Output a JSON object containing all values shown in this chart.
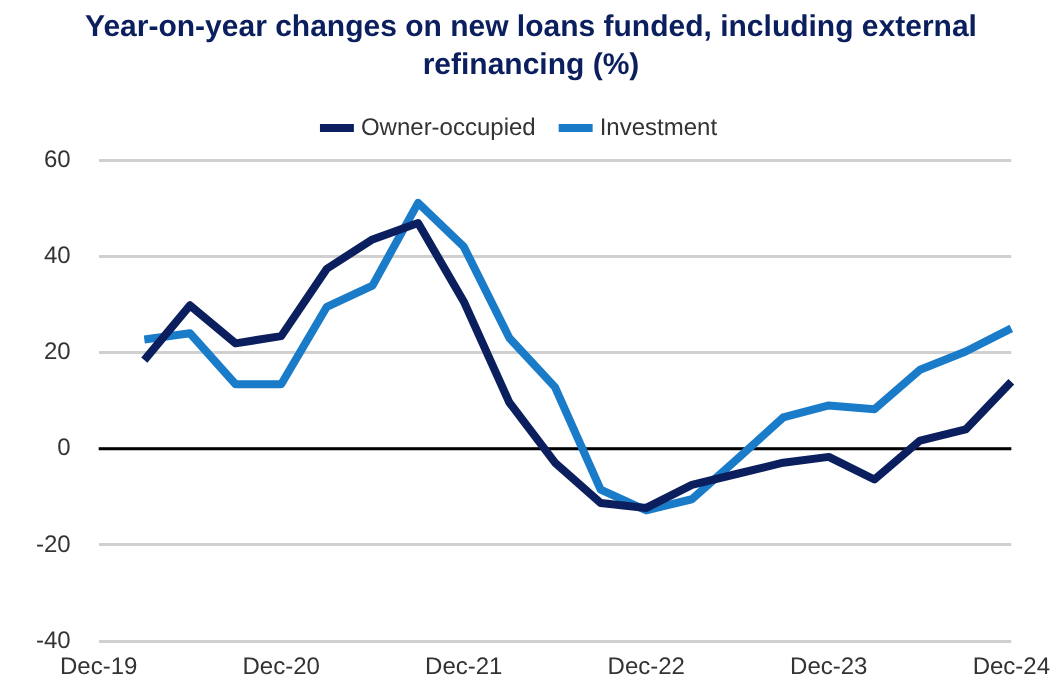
{
  "chart_data": {
    "type": "line",
    "title": "Year-on-year changes on new loans funded, including external refinancing (%)",
    "categories": [
      "Dec-19",
      null,
      null,
      null,
      "Dec-20",
      null,
      null,
      null,
      "Dec-21",
      null,
      null,
      null,
      "Dec-22",
      null,
      null,
      null,
      "Dec-23",
      null,
      null,
      null,
      "Dec-24"
    ],
    "series": [
      {
        "name": "Owner-occupied",
        "color": "#0b1f5e",
        "values": [
          null,
          18.4,
          29.8,
          21.9,
          23.4,
          37.4,
          43.5,
          46.9,
          30.6,
          9.6,
          -2.9,
          -11.3,
          -12.3,
          -7.5,
          -5.2,
          -2.9,
          -1.7,
          -6.4,
          1.7,
          4.0,
          13.9
        ]
      },
      {
        "name": "Investment",
        "color": "#1a7cc9",
        "values": [
          null,
          22.7,
          24.0,
          13.4,
          13.4,
          29.5,
          33.9,
          51.1,
          42.0,
          23.0,
          12.8,
          -8.5,
          -12.8,
          -10.5,
          -2.1,
          6.5,
          9.0,
          8.2,
          16.4,
          20.2,
          25.0
        ]
      }
    ],
    "ylim": [
      -40,
      60
    ],
    "yticks": [
      -40,
      -20,
      0,
      20,
      40,
      60
    ],
    "grid": "y",
    "legend": "top",
    "marker": "none",
    "line_style": "solid",
    "ref_lines": [
      {
        "axis": "y",
        "value": 0,
        "color": "#000000"
      }
    ]
  }
}
